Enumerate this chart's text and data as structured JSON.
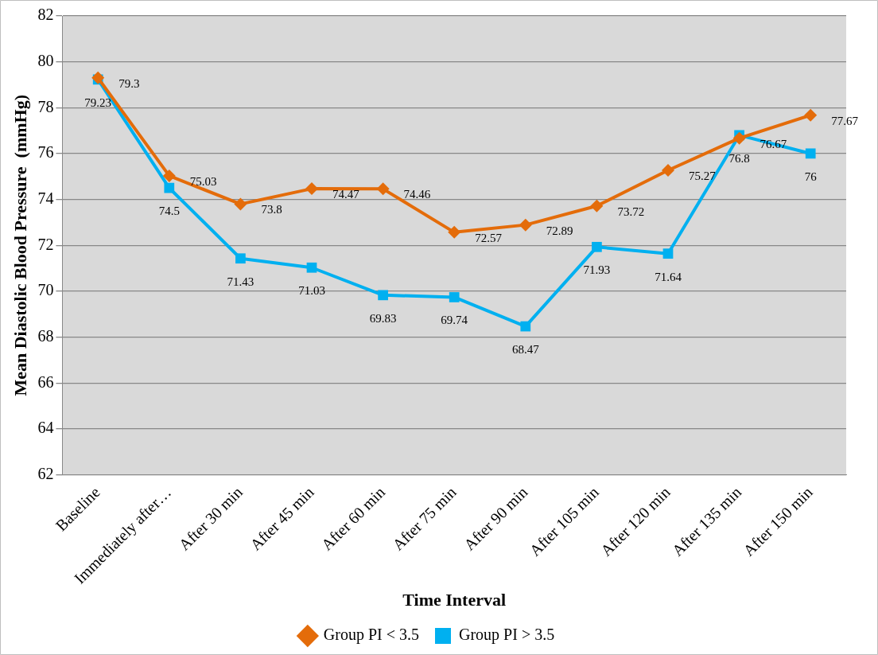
{
  "chart_data": {
    "type": "line",
    "xlabel": "Time Interval",
    "ylabel": "Mean Diastolic Blood Pressure  (mmHg)",
    "categories": [
      "Baseline",
      "Immediately after…",
      "After 30 min",
      "After 45 min",
      "After 60 min",
      "After 75 min",
      "After 90 min",
      "After 105 min",
      "After 120 min",
      "After 135 min",
      "After 150 min"
    ],
    "series": [
      {
        "name": "Group PI < 3.5",
        "color": "#e46c0a",
        "marker": "diamond",
        "values": [
          79.3,
          75.03,
          73.8,
          74.47,
          74.46,
          72.57,
          72.89,
          73.72,
          75.27,
          76.67,
          77.67
        ]
      },
      {
        "name": "Group PI > 3.5",
        "color": "#00b0f0",
        "marker": "square",
        "values": [
          79.23,
          74.5,
          71.43,
          71.03,
          69.83,
          69.74,
          68.47,
          71.93,
          71.64,
          76.8,
          76
        ]
      }
    ],
    "ylim": [
      62,
      82
    ],
    "yticks": [
      62,
      64,
      66,
      68,
      70,
      72,
      74,
      76,
      78,
      80,
      82
    ],
    "grid": "y",
    "legend": "bottom",
    "data_labels": true
  }
}
